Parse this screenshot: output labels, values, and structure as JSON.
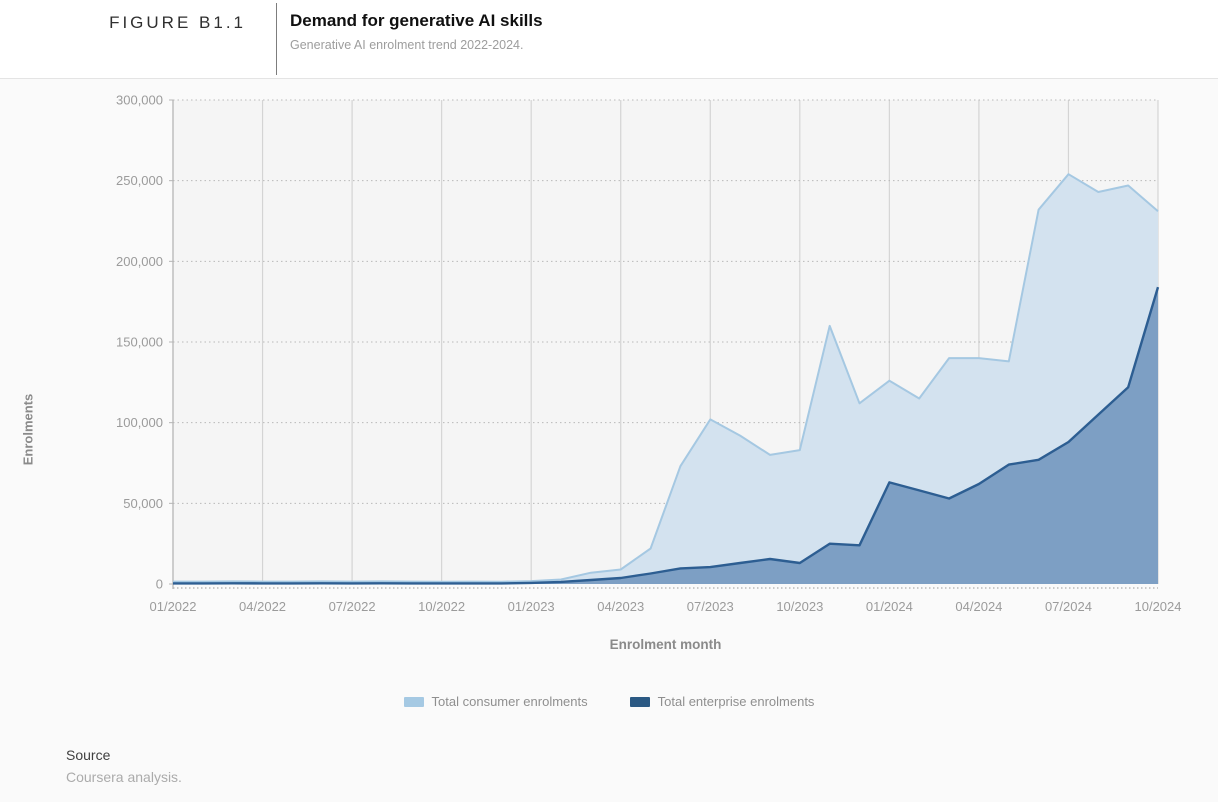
{
  "header": {
    "figure_label": "FIGURE B1.1",
    "title": "Demand for generative AI skills",
    "subtitle": "Generative AI enrolment trend 2022-2024."
  },
  "footer": {
    "source_heading": "Source",
    "source_text": "Coursera analysis."
  },
  "colors": {
    "band_bg": "#fafafa",
    "plot_bg": "#f5f5f5",
    "grid_vertical": "#d4d4d4",
    "grid_dotted": "#b9b9b9",
    "axis_line": "#b5b5b5",
    "tick_text": "#9b9b9b",
    "axis_title_text": "#8a8a8a",
    "consumer_fill": "#d3e2ef",
    "consumer_line": "#a5c8e2",
    "enterprise_fill": "#7d9fc4",
    "enterprise_line": "#2d5e92",
    "legend_consumer_swatch": "#a5c9e3",
    "legend_enterprise_swatch": "#2b5983"
  },
  "chart_data": {
    "type": "area",
    "title": "Demand for generative AI skills",
    "subtitle": "Generative AI enrolment trend 2022-2024.",
    "xlabel": "Enrolment month",
    "ylabel": "Enrolments",
    "ylim": [
      0,
      300000
    ],
    "y_ticks": [
      0,
      50000,
      100000,
      150000,
      200000,
      250000,
      300000
    ],
    "y_tick_labels": [
      "0",
      "50,000",
      "100,000",
      "150,000",
      "200,000",
      "250,000",
      "300,000"
    ],
    "x_tick_labels": [
      "01/2022",
      "04/2022",
      "07/2022",
      "10/2022",
      "01/2023",
      "04/2023",
      "07/2023",
      "10/2023",
      "01/2024",
      "04/2024",
      "07/2024",
      "10/2024"
    ],
    "x_tick_month_indices": [
      0,
      3,
      6,
      9,
      12,
      15,
      18,
      21,
      24,
      27,
      30,
      33
    ],
    "grid": {
      "vertical": "solid",
      "horizontal": "dotted"
    },
    "legend_position": "bottom-center",
    "months": [
      "01/2022",
      "02/2022",
      "03/2022",
      "04/2022",
      "05/2022",
      "06/2022",
      "07/2022",
      "08/2022",
      "09/2022",
      "10/2022",
      "11/2022",
      "12/2022",
      "01/2023",
      "02/2023",
      "03/2023",
      "04/2023",
      "05/2023",
      "06/2023",
      "07/2023",
      "08/2023",
      "09/2023",
      "10/2023",
      "11/2023",
      "12/2023",
      "01/2024",
      "02/2024",
      "03/2024",
      "04/2024",
      "05/2024",
      "06/2024",
      "07/2024",
      "08/2024",
      "09/2024",
      "10/2024"
    ],
    "series": [
      {
        "name": "Total consumer enrolments",
        "values": [
          1500,
          1500,
          1600,
          1500,
          1500,
          1600,
          1500,
          1600,
          1500,
          1400,
          1500,
          1400,
          1800,
          2800,
          7000,
          9000,
          22000,
          73000,
          102000,
          92000,
          80000,
          83000,
          160000,
          112000,
          126000,
          115000,
          140000,
          140000,
          138000,
          232000,
          254000,
          243000,
          247000,
          231000
        ]
      },
      {
        "name": "Total enterprise enrolments",
        "values": [
          400,
          400,
          450,
          400,
          400,
          450,
          400,
          450,
          400,
          400,
          400,
          400,
          700,
          1300,
          2500,
          3700,
          6500,
          9700,
          10500,
          13000,
          15500,
          13000,
          25000,
          24000,
          63000,
          58000,
          53000,
          62000,
          74000,
          77000,
          88000,
          105000,
          122000,
          184000
        ]
      }
    ]
  }
}
